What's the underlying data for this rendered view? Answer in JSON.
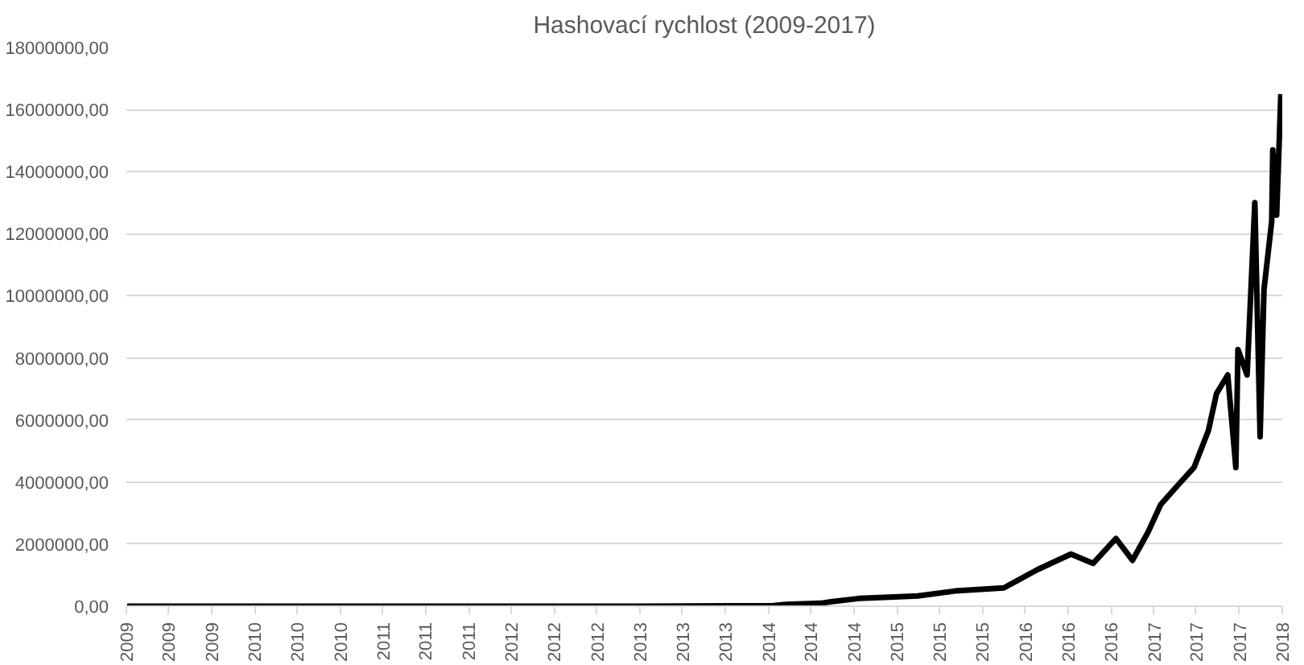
{
  "chart_data": {
    "type": "line",
    "title": "Hashovací rychlost (2009-2017)",
    "x": [
      "2009-01-03",
      "2010-01-01",
      "2011-01-01",
      "2012-01-01",
      "2013-01-01",
      "2014-01-15",
      "2014-02-20",
      "2014-06-01",
      "2014-07-01",
      "2014-09-15",
      "2014-12-10",
      "2015-03-01",
      "2015-06-15",
      "2015-11-01",
      "2016-02-05",
      "2016-05-10",
      "2016-07-12",
      "2016-09-15",
      "2016-11-01",
      "2016-12-15",
      "2017-01-20",
      "2017-03-08",
      "2017-04-25",
      "2017-06-05",
      "2017-06-28",
      "2017-07-30",
      "2017-08-22",
      "2017-08-28",
      "2017-09-23",
      "2017-10-15",
      "2017-10-30",
      "2017-11-10",
      "2017-12-02",
      "2017-12-05",
      "2017-12-16",
      "2017-12-28"
    ],
    "series": [
      {
        "color": "#000000",
        "values": [
          0,
          0,
          0,
          0,
          0,
          20000,
          60000,
          100000,
          150000,
          250000,
          290000,
          330000,
          490000,
          590000,
          1180000,
          1680000,
          1380000,
          2180000,
          1480000,
          2380000,
          3270000,
          3870000,
          4470000,
          5660000,
          6850000,
          7450000,
          4470000,
          8270000,
          7450000,
          13000000,
          5460000,
          10200000,
          12400000,
          14700000,
          12600000,
          16500000
        ]
      }
    ],
    "xlim": [
      "2009-01-01",
      "2018-01-01"
    ],
    "xticks": [
      {
        "value": "2009-01-01",
        "label": "2009"
      },
      {
        "value": "2009-05-01",
        "label": "2009"
      },
      {
        "value": "2009-09-01",
        "label": "2009"
      },
      {
        "value": "2010-01-01",
        "label": "2010"
      },
      {
        "value": "2010-05-01",
        "label": "2010"
      },
      {
        "value": "2010-09-01",
        "label": "2010"
      },
      {
        "value": "2011-01-01",
        "label": "2011"
      },
      {
        "value": "2011-05-01",
        "label": "2011"
      },
      {
        "value": "2011-09-01",
        "label": "2011"
      },
      {
        "value": "2012-01-01",
        "label": "2012"
      },
      {
        "value": "2012-05-01",
        "label": "2012"
      },
      {
        "value": "2012-09-01",
        "label": "2012"
      },
      {
        "value": "2013-01-01",
        "label": "2013"
      },
      {
        "value": "2013-05-01",
        "label": "2013"
      },
      {
        "value": "2013-09-01",
        "label": "2013"
      },
      {
        "value": "2014-01-01",
        "label": "2014"
      },
      {
        "value": "2014-05-01",
        "label": "2014"
      },
      {
        "value": "2014-09-01",
        "label": "2014"
      },
      {
        "value": "2015-01-01",
        "label": "2015"
      },
      {
        "value": "2015-05-01",
        "label": "2015"
      },
      {
        "value": "2015-09-01",
        "label": "2015"
      },
      {
        "value": "2016-01-01",
        "label": "2016"
      },
      {
        "value": "2016-05-01",
        "label": "2016"
      },
      {
        "value": "2016-09-01",
        "label": "2016"
      },
      {
        "value": "2017-01-01",
        "label": "2017"
      },
      {
        "value": "2017-05-01",
        "label": "2017"
      },
      {
        "value": "2017-09-01",
        "label": "2017"
      },
      {
        "value": "2018-01-01",
        "label": "2018"
      }
    ],
    "ylim": [
      0,
      18000000
    ],
    "yticks": [
      {
        "value": 0,
        "label": "0,00"
      },
      {
        "value": 2000000,
        "label": "2000000,00"
      },
      {
        "value": 4000000,
        "label": "4000000,00"
      },
      {
        "value": 6000000,
        "label": "6000000,00"
      },
      {
        "value": 8000000,
        "label": "8000000,00"
      },
      {
        "value": 10000000,
        "label": "10000000,00"
      },
      {
        "value": 12000000,
        "label": "12000000,00"
      },
      {
        "value": 14000000,
        "label": "14000000,00"
      },
      {
        "value": 16000000,
        "label": "16000000,00"
      },
      {
        "value": 18000000,
        "label": "18000000,00"
      }
    ],
    "grid": "y",
    "marker": "none",
    "line_style": "solid"
  }
}
